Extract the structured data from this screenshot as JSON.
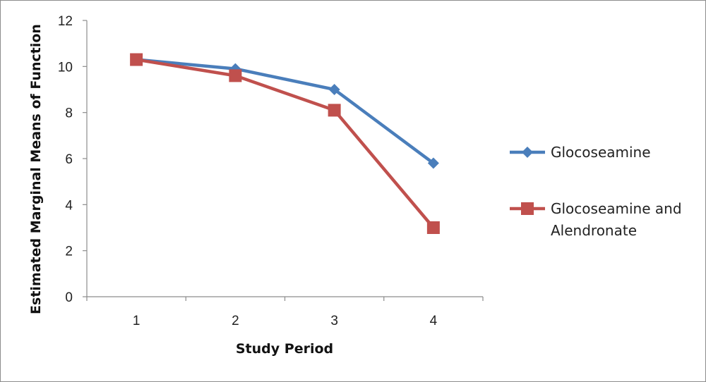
{
  "chart_data": {
    "type": "line",
    "x": [
      1,
      2,
      3,
      4
    ],
    "series": [
      {
        "name": "Glocoseamine",
        "values": [
          10.3,
          9.9,
          9.0,
          5.8
        ],
        "color": "#4a7ebb",
        "marker": "diamond"
      },
      {
        "name": "Glocoseamine and Alendronate",
        "name_lines": [
          "Glocoseamine and",
          "Alendronate"
        ],
        "values": [
          10.3,
          9.6,
          8.1,
          3.0
        ],
        "color": "#c0504d",
        "marker": "square"
      }
    ],
    "xlabel": "Study Period",
    "ylabel": "Estimated Marginal Means of Function",
    "ylim": [
      0,
      12
    ],
    "yticks": [
      0,
      2,
      4,
      6,
      8,
      10,
      12
    ],
    "xticks": [
      1,
      2,
      3,
      4
    ],
    "grid": false,
    "legend": "right"
  }
}
